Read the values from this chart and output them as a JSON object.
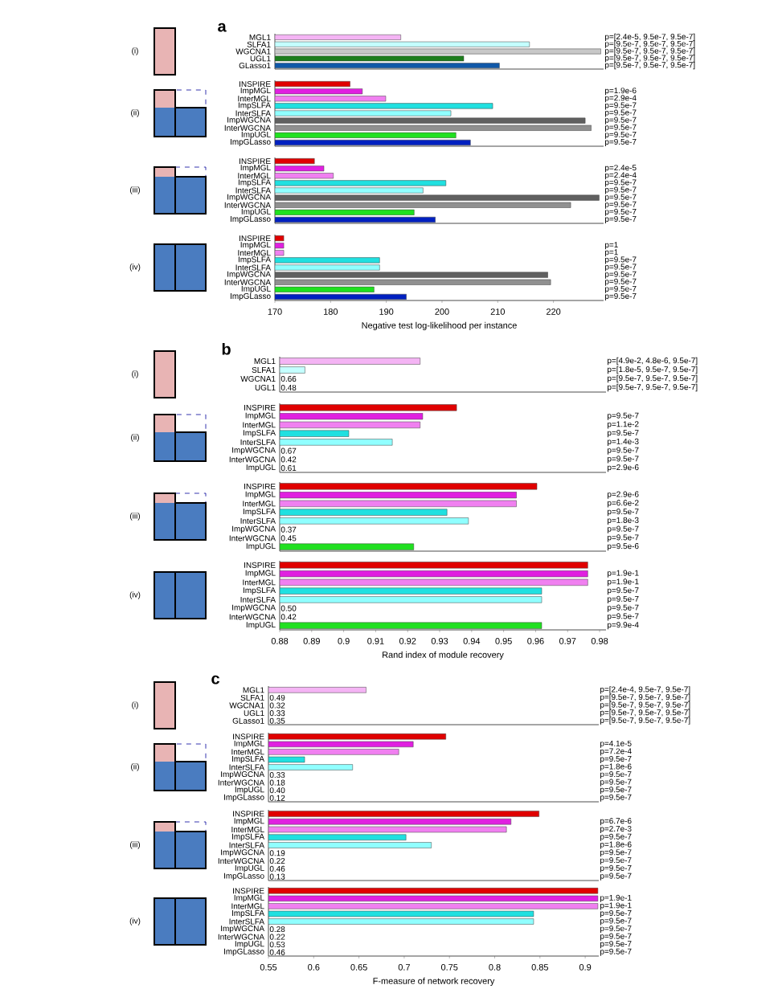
{
  "chart_data": [
    {
      "type": "bar",
      "orientation": "horizontal",
      "title": "a",
      "ylabel": "(i)",
      "categories": [
        "MGL1",
        "SLFA1",
        "WGCNA1",
        "UGL1",
        "GLasso1"
      ],
      "values": [
        192.6,
        215.7,
        228.5,
        203.9,
        210.3
      ],
      "colors": [
        "#f4b4f4",
        "#c4ffff",
        "#c8c8c8",
        "#1e7e1e",
        "#1058a8"
      ],
      "annotations": [
        "p=[2.4e-5, 9.5e-7, 9.5e-7]",
        "p=[9.5e-7, 9.5e-7, 9.5e-7]",
        "p=[9.5e-7, 9.5e-7, 9.5e-7]",
        "p=[9.5e-7, 9.5e-7, 9.5e-7]",
        "p=[9.5e-7, 9.5e-7, 9.5e-7]"
      ],
      "xlim": [
        170,
        229
      ],
      "xticks": [
        170,
        180,
        190,
        200,
        210,
        220
      ],
      "tick_labels": "y"
    },
    {
      "type": "bar",
      "orientation": "horizontal",
      "ylabel": "(ii)",
      "categories": [
        "INSPIRE",
        "ImpMGL",
        "InterMGL",
        "ImpSLFA",
        "InterSLFA",
        "ImpWGCNA",
        "InterWGCNA",
        "ImpUGL",
        "ImpGLasso"
      ],
      "values": [
        183.5,
        185.7,
        189.9,
        209.1,
        201.6,
        225.7,
        226.8,
        202.5,
        205.1
      ],
      "colors": [
        "#e00000",
        "#e020e0",
        "#f080f0",
        "#20e0e0",
        "#90ffff",
        "#606060",
        "#909090",
        "#20e020",
        "#0020c0"
      ],
      "annotations": [
        "p=1.9e-6",
        "p=2.9e-4",
        "p=9.5e-7",
        "p=9.5e-7",
        "p=9.5e-7",
        "p=9.5e-7",
        "p=9.5e-7",
        "p=9.5e-7"
      ],
      "xlim": [
        170,
        229
      ],
      "xticks": [
        170,
        180,
        190,
        200,
        210,
        220
      ],
      "tick_labels": "y"
    },
    {
      "type": "bar",
      "orientation": "horizontal",
      "ylabel": "(iii)",
      "categories": [
        "INSPIRE",
        "ImpMGL",
        "InterMGL",
        "ImpSLFA",
        "InterSLFA",
        "ImpWGCNA",
        "InterWGCNA",
        "ImpUGL",
        "ImpGLasso"
      ],
      "values": [
        177.1,
        178.8,
        180.5,
        200.7,
        196.6,
        228.2,
        223.1,
        195.0,
        198.8
      ],
      "colors": [
        "#e00000",
        "#e020e0",
        "#f080f0",
        "#20e0e0",
        "#90ffff",
        "#606060",
        "#909090",
        "#20e020",
        "#0020c0"
      ],
      "annotations": [
        "p=2.4e-5",
        "p=2.4e-4",
        "p=9.5e-7",
        "p=9.5e-7",
        "p=9.5e-7",
        "p=9.5e-7",
        "p=9.5e-7",
        "p=9.5e-7"
      ],
      "xlim": [
        170,
        229
      ],
      "xticks": [
        170,
        180,
        190,
        200,
        210,
        220
      ],
      "tick_labels": "y"
    },
    {
      "type": "bar",
      "orientation": "horizontal",
      "ylabel": "(iv)",
      "xlabel": "Negative test log-likelihood per instance",
      "categories": [
        "INSPIRE",
        "ImpMGL",
        "InterMGL",
        "ImpSLFA",
        "InterSLFA",
        "ImpWGCNA",
        "InterWGCNA",
        "ImpUGL",
        "ImpGLasso"
      ],
      "values": [
        171.6,
        171.6,
        171.6,
        188.8,
        188.8,
        219.0,
        219.5,
        187.8,
        193.6
      ],
      "colors": [
        "#e00000",
        "#e020e0",
        "#f080f0",
        "#20e0e0",
        "#90ffff",
        "#606060",
        "#909090",
        "#20e020",
        "#0020c0"
      ],
      "annotations": [
        "p=1",
        "p=1",
        "p=9.5e-7",
        "p=9.5e-7",
        "p=9.5e-7",
        "p=9.5e-7",
        "p=9.5e-7",
        "p=9.5e-7"
      ],
      "xlim": [
        170,
        229
      ],
      "xticks": [
        170,
        180,
        190,
        200,
        210,
        220
      ]
    },
    {
      "type": "bar",
      "orientation": "horizontal",
      "title": "b",
      "ylabel": "(i)",
      "categories": [
        "MGL1",
        "SLFA1",
        "WGCNA1",
        "UGL1"
      ],
      "values": [
        0.9239,
        0.8879,
        null,
        null
      ],
      "colors": [
        "#f4b4f4",
        "#c4ffff",
        "#c8c8c8",
        "#1e7e1e"
      ],
      "annotations": [
        "0.66",
        "0.48",
        "p=[4.9e-2, 4.8e-6, 9.5e-7]",
        "p=[1.8e-5, 9.5e-7, 9.5e-7]",
        "p=[9.5e-7, 9.5e-7, 9.5e-7]",
        "p=[9.5e-7, 9.5e-7, 9.5e-7]"
      ],
      "xlim": [
        0.88,
        0.982
      ],
      "xticks": [
        0.88,
        0.89,
        0.9,
        0.91,
        0.92,
        0.93,
        0.94,
        0.95,
        0.96,
        0.97,
        0.98
      ],
      "tick_labels": "y"
    },
    {
      "type": "bar",
      "orientation": "horizontal",
      "ylabel": "(ii)",
      "categories": [
        "INSPIRE",
        "ImpMGL",
        "InterMGL",
        "ImpSLFA",
        "InterSLFA",
        "ImpWGCNA",
        "InterWGCNA",
        "ImpUGL"
      ],
      "values": [
        0.9353,
        0.9247,
        0.9239,
        0.9016,
        0.9152,
        null,
        null,
        null
      ],
      "colors": [
        "#e00000",
        "#e020e0",
        "#f080f0",
        "#20e0e0",
        "#90ffff",
        "#606060",
        "#909090",
        "#20e020"
      ],
      "annotations": [
        "0.67",
        "0.42",
        "0.61",
        "p=9.5e-7",
        "p=1.1e-2",
        "p=9.5e-7",
        "p=1.4e-3",
        "p=9.5e-7",
        "p=9.5e-7",
        "p=2.9e-6"
      ],
      "xlim": [
        0.88,
        0.982
      ],
      "xticks": [
        0.88,
        0.89,
        0.9,
        0.91,
        0.92,
        0.93,
        0.94,
        0.95,
        0.96,
        0.97,
        0.98
      ],
      "tick_labels": "y"
    },
    {
      "type": "bar",
      "orientation": "horizontal",
      "ylabel": "(iii)",
      "categories": [
        "INSPIRE",
        "ImpMGL",
        "InterMGL",
        "ImpSLFA",
        "InterSLFA",
        "ImpWGCNA",
        "InterWGCNA",
        "ImpUGL"
      ],
      "values": [
        0.9604,
        0.954,
        0.954,
        0.9323,
        0.939,
        null,
        null,
        0.9219
      ],
      "colors": [
        "#e00000",
        "#e020e0",
        "#f080f0",
        "#20e0e0",
        "#90ffff",
        "#606060",
        "#909090",
        "#20e020"
      ],
      "annotations": [
        "0.37",
        "0.45",
        "p=2.9e-6",
        "p=6.6e-2",
        "p=9.5e-7",
        "p=1.8e-3",
        "p=9.5e-7",
        "p=9.5e-7",
        "p=9.5e-6"
      ],
      "xlim": [
        0.88,
        0.982
      ],
      "xticks": [
        0.88,
        0.89,
        0.9,
        0.91,
        0.92,
        0.93,
        0.94,
        0.95,
        0.96,
        0.97,
        0.98
      ],
      "tick_labels": "y"
    },
    {
      "type": "bar",
      "orientation": "horizontal",
      "ylabel": "(iv)",
      "xlabel": "Rand index of module recovery",
      "categories": [
        "INSPIRE",
        "ImpMGL",
        "InterMGL",
        "ImpSLFA",
        "InterSLFA",
        "ImpWGCNA",
        "InterWGCNA",
        "ImpUGL"
      ],
      "values": [
        0.9763,
        0.9763,
        0.9763,
        0.9619,
        0.9619,
        null,
        null,
        0.9619
      ],
      "colors": [
        "#e00000",
        "#e020e0",
        "#f080f0",
        "#20e0e0",
        "#90ffff",
        "#606060",
        "#909090",
        "#20e020"
      ],
      "annotations": [
        "0.50",
        "0.42",
        "p=1.9e-1",
        "p=1.9e-1",
        "p=9.5e-7",
        "p=9.5e-7",
        "p=9.5e-7",
        "p=9.5e-7",
        "p=9.9e-4"
      ],
      "xlim": [
        0.88,
        0.982
      ],
      "xticks": [
        0.88,
        0.89,
        0.9,
        0.91,
        0.92,
        0.93,
        0.94,
        0.95,
        0.96,
        0.97,
        0.98
      ]
    },
    {
      "type": "bar",
      "orientation": "horizontal",
      "title": "c",
      "ylabel": "(i)",
      "categories": [
        "MGL1",
        "SLFA1",
        "WGCNA1",
        "UGL1",
        "GLasso1"
      ],
      "values": [
        0.658,
        null,
        null,
        null,
        null
      ],
      "colors": [
        "#f4b4f4",
        "#c4ffff",
        "#c8c8c8",
        "#1e7e1e",
        "#1058a8"
      ],
      "annotations": [
        "0.49",
        "0.32",
        "0.33",
        "0.35",
        "p=[2.4e-4, 9.5e-7, 9.5e-7]",
        "p=[9.5e-7, 9.5e-7, 9.5e-7]",
        "p=[9.5e-7, 9.5e-7, 9.5e-7]",
        "p=[9.5e-7, 9.5e-7, 9.5e-7]",
        "p=[9.5e-7, 9.5e-7, 9.5e-7]"
      ],
      "xlim": [
        0.55,
        0.915
      ],
      "xticks": [
        0.55,
        0.6,
        0.65,
        0.7,
        0.75,
        0.8,
        0.85,
        0.9
      ],
      "tick_labels": "y"
    },
    {
      "type": "bar",
      "orientation": "horizontal",
      "ylabel": "(ii)",
      "categories": [
        "INSPIRE",
        "ImpMGL",
        "InterMGL",
        "ImpSLFA",
        "InterSLFA",
        "ImpWGCNA",
        "InterWGCNA",
        "ImpUGL",
        "ImpGLasso"
      ],
      "values": [
        0.746,
        0.71,
        0.694,
        0.59,
        0.643,
        null,
        null,
        null,
        null
      ],
      "colors": [
        "#e00000",
        "#e020e0",
        "#f080f0",
        "#20e0e0",
        "#90ffff",
        "#606060",
        "#909090",
        "#20e020",
        "#0020c0"
      ],
      "annotations": [
        "0.33",
        "0.18",
        "0.40",
        "0.12",
        "p=4.1e-5",
        "p=7.2e-4",
        "p=9.5e-7",
        "p=1.8e-6",
        "p=9.5e-7",
        "p=9.5e-7",
        "p=9.5e-7",
        "p=9.5e-7"
      ],
      "xlim": [
        0.55,
        0.915
      ],
      "xticks": [
        0.55,
        0.6,
        0.65,
        0.7,
        0.75,
        0.8,
        0.85,
        0.9
      ],
      "tick_labels": "y"
    },
    {
      "type": "bar",
      "orientation": "horizontal",
      "ylabel": "(iii)",
      "categories": [
        "INSPIRE",
        "ImpMGL",
        "InterMGL",
        "ImpSLFA",
        "InterSLFA",
        "ImpWGCNA",
        "InterWGCNA",
        "ImpUGL",
        "ImpGLasso"
      ],
      "values": [
        0.849,
        0.818,
        0.813,
        0.702,
        0.73,
        null,
        null,
        null,
        null
      ],
      "colors": [
        "#e00000",
        "#e020e0",
        "#f080f0",
        "#20e0e0",
        "#90ffff",
        "#606060",
        "#909090",
        "#20e020",
        "#0020c0"
      ],
      "annotations": [
        "0.19",
        "0.22",
        "0.46",
        "0.13",
        "p=6.7e-6",
        "p=2.7e-3",
        "p=9.5e-7",
        "p=1.8e-6",
        "p=9.5e-7",
        "p=9.5e-7",
        "p=9.5e-7",
        "p=9.5e-7"
      ],
      "xlim": [
        0.55,
        0.915
      ],
      "xticks": [
        0.55,
        0.6,
        0.65,
        0.7,
        0.75,
        0.8,
        0.85,
        0.9
      ],
      "tick_labels": "y"
    },
    {
      "type": "bar",
      "orientation": "horizontal",
      "ylabel": "(iv)",
      "xlabel": "F-measure of network recovery",
      "categories": [
        "INSPIRE",
        "ImpMGL",
        "InterMGL",
        "ImpSLFA",
        "InterSLFA",
        "ImpWGCNA",
        "InterWGCNA",
        "ImpUGL",
        "ImpGLasso"
      ],
      "values": [
        0.914,
        0.914,
        0.914,
        0.843,
        0.843,
        null,
        null,
        null,
        null
      ],
      "colors": [
        "#e00000",
        "#e020e0",
        "#f080f0",
        "#20e0e0",
        "#90ffff",
        "#606060",
        "#909090",
        "#20e020",
        "#0020c0"
      ],
      "annotations": [
        "0.28",
        "0.22",
        "0.53",
        "0.46",
        "p=1.9e-1",
        "p=1.9e-1",
        "p=9.5e-7",
        "p=9.5e-7",
        "p=9.5e-7",
        "p=9.5e-7",
        "p=9.5e-7",
        "p=9.5e-7"
      ],
      "xlim": [
        0.55,
        0.915
      ],
      "xticks": [
        0.55,
        0.6,
        0.65,
        0.7,
        0.75,
        0.8,
        0.85,
        0.9
      ]
    }
  ]
}
